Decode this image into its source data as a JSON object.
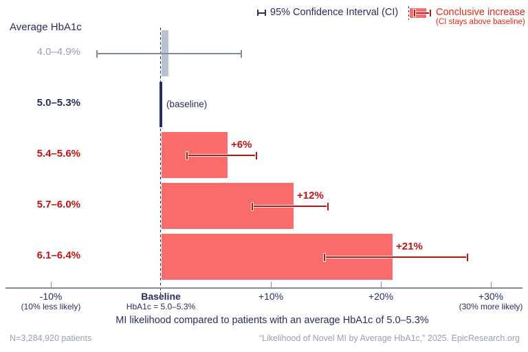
{
  "colors": {
    "navy": "#252e5c",
    "gray_blue": "#7d8ca3",
    "muted_blue": "#96a1b5",
    "bar_salmon": "#fa6b6b",
    "dark_red": "#c11212",
    "legend_red": "#df2917",
    "gray_bar": "#b8c2d0"
  },
  "legend": {
    "ci_label": "95% Confidence Interval (CI)",
    "conclusive_label": "Conclusive increase",
    "conclusive_sublabel": "(CI stays above baseline)"
  },
  "chart_data": {
    "type": "bar",
    "orientation": "horizontal",
    "title": "Average HbA1c",
    "xlabel": "MI likelihood compared to patients with an average HbA1c of 5.0–5.3%",
    "xlim": [
      -14,
      33
    ],
    "grid": false,
    "legend_position": "top-right",
    "x_ticks": [
      {
        "value": -10,
        "label": "-10%",
        "sublabel": "(10% less likely)"
      },
      {
        "value": 0,
        "label": "Baseline",
        "sublabel": "HbA1c = 5.0–5.3%",
        "bold": true
      },
      {
        "value": 10,
        "label": "+10%"
      },
      {
        "value": 20,
        "label": "+20%"
      },
      {
        "value": 30,
        "label": "+30%",
        "sublabel": "(30% more likely)"
      }
    ],
    "rows": [
      {
        "category": "4.0–4.9%",
        "value": 0.6,
        "ci": [
          -5.8,
          7.3
        ],
        "kind": "inconclusive"
      },
      {
        "category": "5.0–5.3%",
        "value": 0,
        "kind": "baseline",
        "annotation": "(baseline)"
      },
      {
        "category": "5.4–5.6%",
        "value": 6,
        "ci": [
          2.4,
          8.7
        ],
        "kind": "conclusive",
        "data_label": "+6%"
      },
      {
        "category": "5.7–6.0%",
        "value": 12,
        "ci": [
          8.3,
          15.2
        ],
        "kind": "conclusive",
        "data_label": "+12%"
      },
      {
        "category": "6.1–6.4%",
        "value": 21,
        "ci": [
          14.9,
          27.9
        ],
        "kind": "conclusive",
        "data_label": "+21%"
      }
    ]
  },
  "footer": {
    "left": "N=3,284,920 patients",
    "right": "“Likelihood of Novel MI by Average HbA1c,” 2025. EpicResearch.org"
  }
}
